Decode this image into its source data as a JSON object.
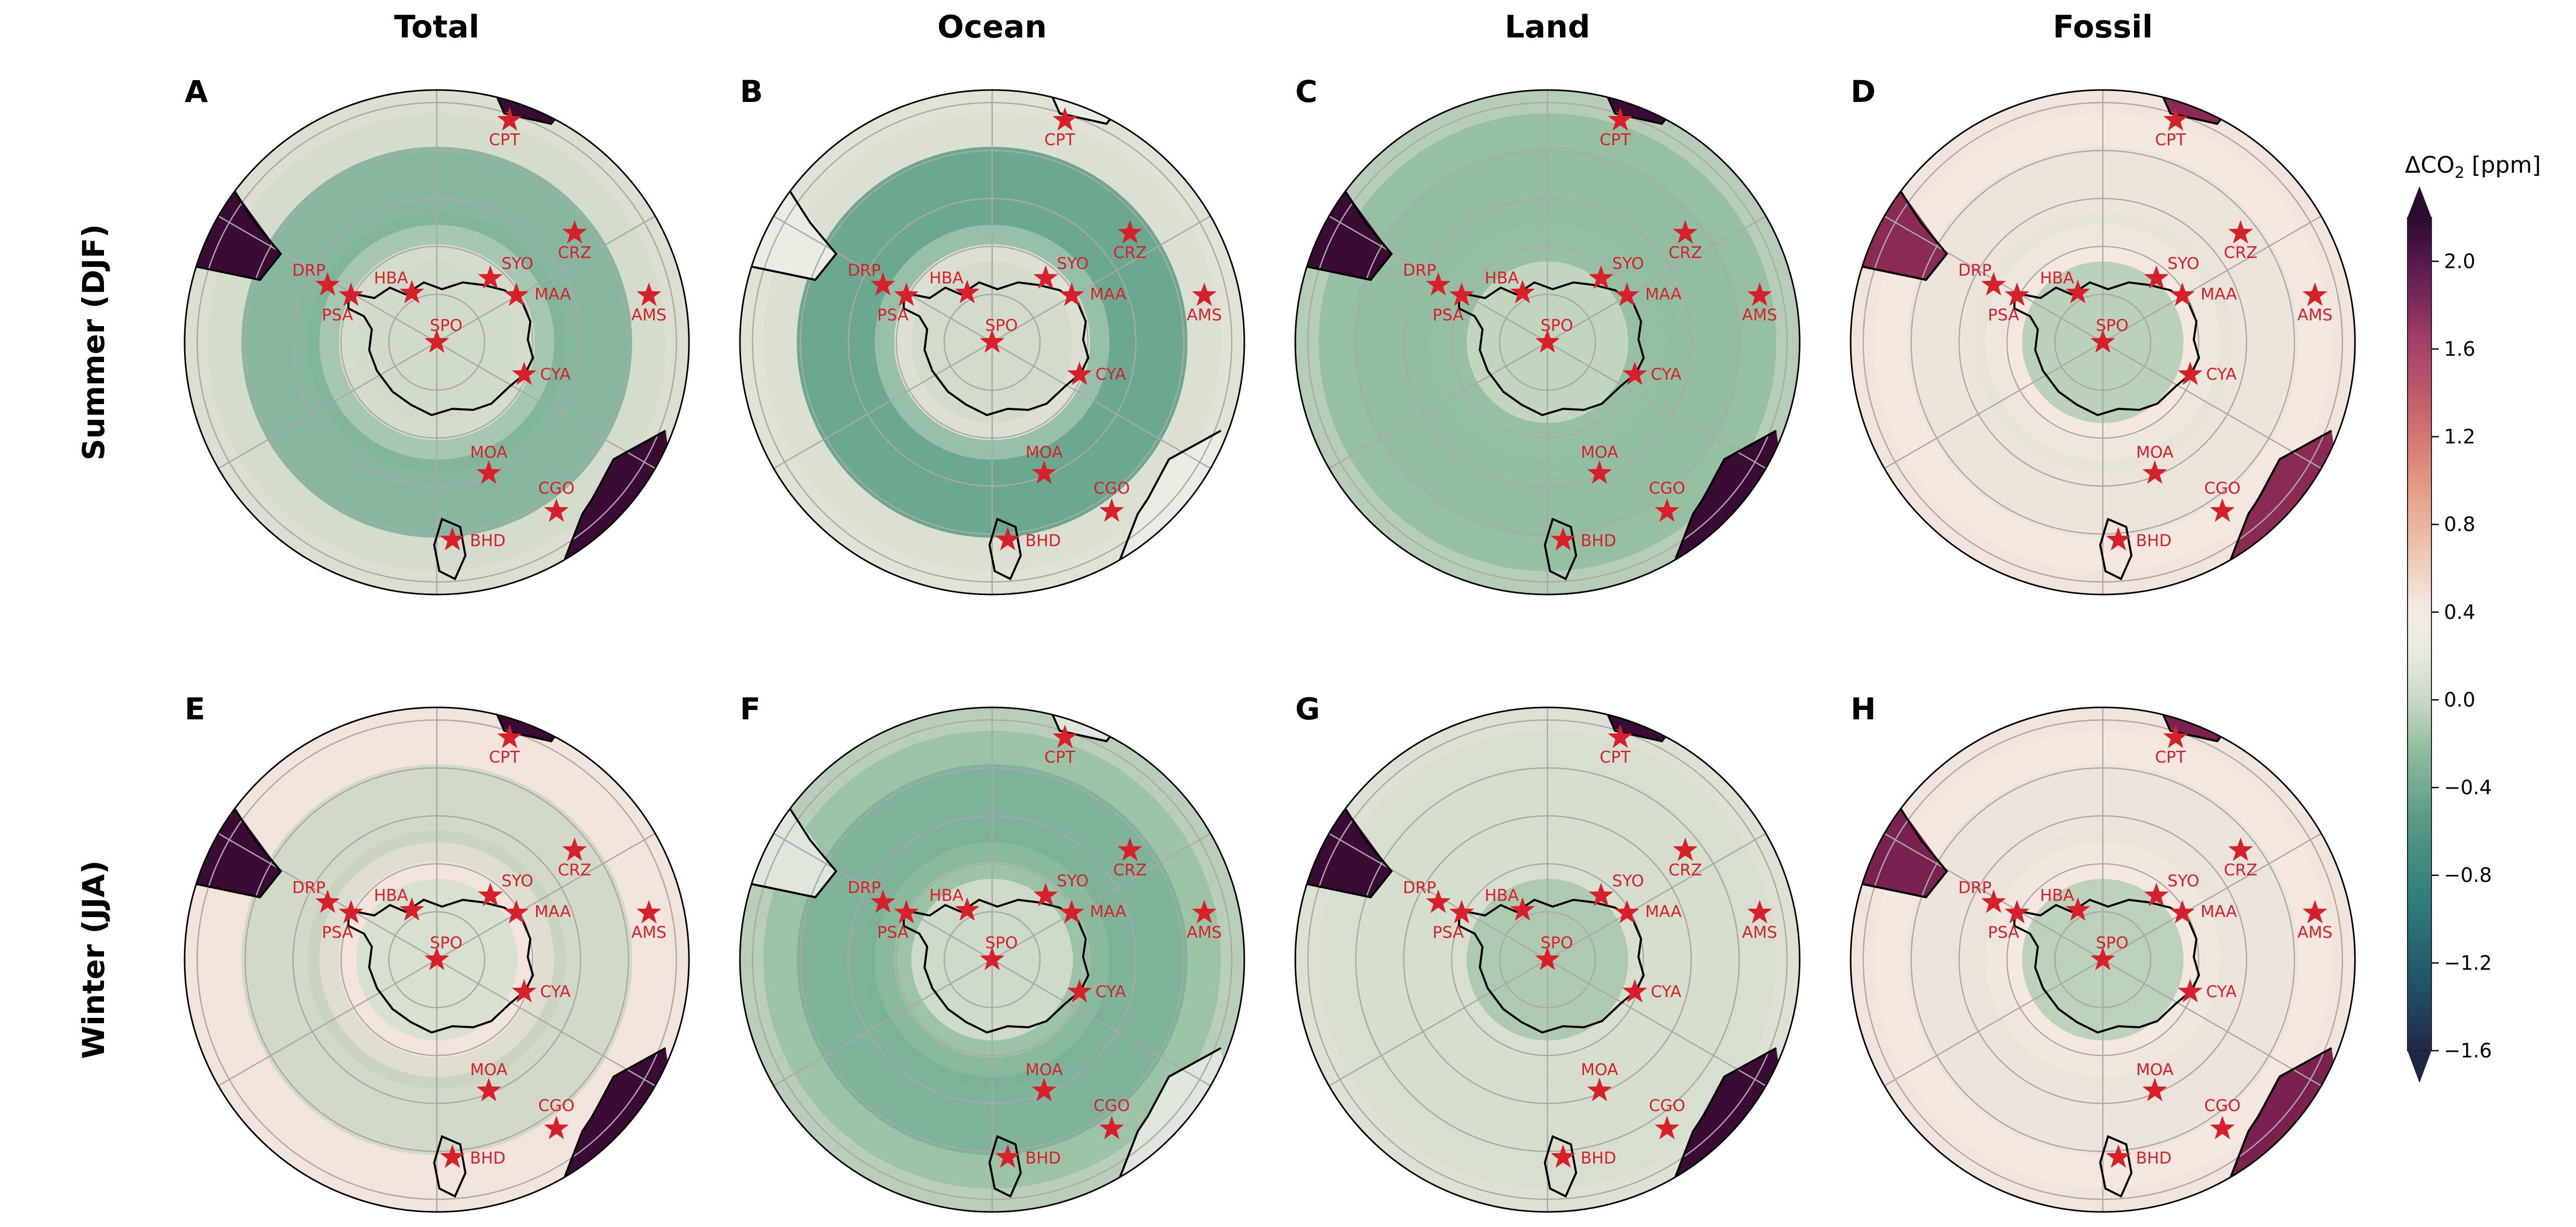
{
  "columns": [
    "Total",
    "Ocean",
    "Land",
    "Fossil"
  ],
  "rows": [
    "Summer (DJF)",
    "Winter (JJA)"
  ],
  "panel_labels": [
    "A",
    "B",
    "C",
    "D",
    "E",
    "F",
    "G",
    "H"
  ],
  "colorbar": {
    "title": "ΔCO",
    "title_sub": "2",
    "title_unit": " [ppm]",
    "ticks": [
      "2.0",
      "1.6",
      "1.2",
      "0.8",
      "0.4",
      "0.0",
      "−0.4",
      "−0.8",
      "−1.2",
      "−1.6"
    ],
    "tick_values": [
      2.0,
      1.6,
      1.2,
      0.8,
      0.4,
      0.0,
      -0.4,
      -0.8,
      -1.2,
      -1.6
    ],
    "range": [
      -1.6,
      2.2
    ],
    "colormap": [
      "#1f2747",
      "#215467",
      "#2e7d7a",
      "#5a9b86",
      "#8fbc9c",
      "#c8d8c6",
      "#e8ebe2",
      "#f5e9e2",
      "#eec5b0",
      "#e29a83",
      "#c9636c",
      "#9c3b66",
      "#5b1b4e",
      "#2b0b2f"
    ]
  },
  "station_marker_color": "#d8202a",
  "stations": [
    "CPT",
    "CRZ",
    "AMS",
    "SYO",
    "MAA",
    "HBA",
    "DRP",
    "PSA",
    "SPO",
    "CYA",
    "MOA",
    "CGO",
    "BHD"
  ],
  "projection": "south-polar-stereographic",
  "panels": [
    {
      "label": "A",
      "column": "Total",
      "row": "Summer (DJF)",
      "land_bg": "#d4dccc",
      "ocean_band": "#7eb39a",
      "ocean_strength": 0.9,
      "hot": "#3a0c35",
      "pole_tint": "#cfdbc9"
    },
    {
      "label": "B",
      "column": "Ocean",
      "row": "Summer (DJF)",
      "land_bg": "#dce0d3",
      "ocean_band": "#6aa890",
      "ocean_strength": 1.0,
      "hot": "#e8ece3",
      "pole_tint": "#d2dccb"
    },
    {
      "label": "C",
      "column": "Land",
      "row": "Summer (DJF)",
      "land_bg": "#97c0a3",
      "ocean_band": "#8bbb9e",
      "ocean_strength": 0.3,
      "hot": "#3a0c35",
      "pole_tint": "#c7d7c2"
    },
    {
      "label": "D",
      "column": "Fossil",
      "row": "Summer (DJF)",
      "land_bg": "#f3e7e0",
      "ocean_band": "#d0dcc9",
      "ocean_strength": 0.2,
      "hot": "#8a2a55",
      "pole_tint": "#b5ceb5"
    },
    {
      "label": "E",
      "column": "Total",
      "row": "Winter (JJA)",
      "land_bg": "#f2e4dc",
      "ocean_band": "#b3cdb3",
      "ocean_strength": 0.5,
      "hot": "#3a0c35",
      "pole_tint": "#d5dfcd"
    },
    {
      "label": "F",
      "column": "Ocean",
      "row": "Winter (JJA)",
      "land_bg": "#9cc3a6",
      "ocean_band": "#78b097",
      "ocean_strength": 0.8,
      "hot": "#dfe6db",
      "pole_tint": "#d4dece"
    },
    {
      "label": "G",
      "column": "Land",
      "row": "Winter (JJA)",
      "land_bg": "#d8dfd0",
      "ocean_band": "#d0dac9",
      "ocean_strength": 0.2,
      "hot": "#3a0c35",
      "pole_tint": "#a9c8ad"
    },
    {
      "label": "H",
      "column": "Fossil",
      "row": "Winter (JJA)",
      "land_bg": "#f3e7e0",
      "ocean_band": "#d3ddcb",
      "ocean_strength": 0.2,
      "hot": "#7a2152",
      "pole_tint": "#b6cfb6"
    }
  ]
}
